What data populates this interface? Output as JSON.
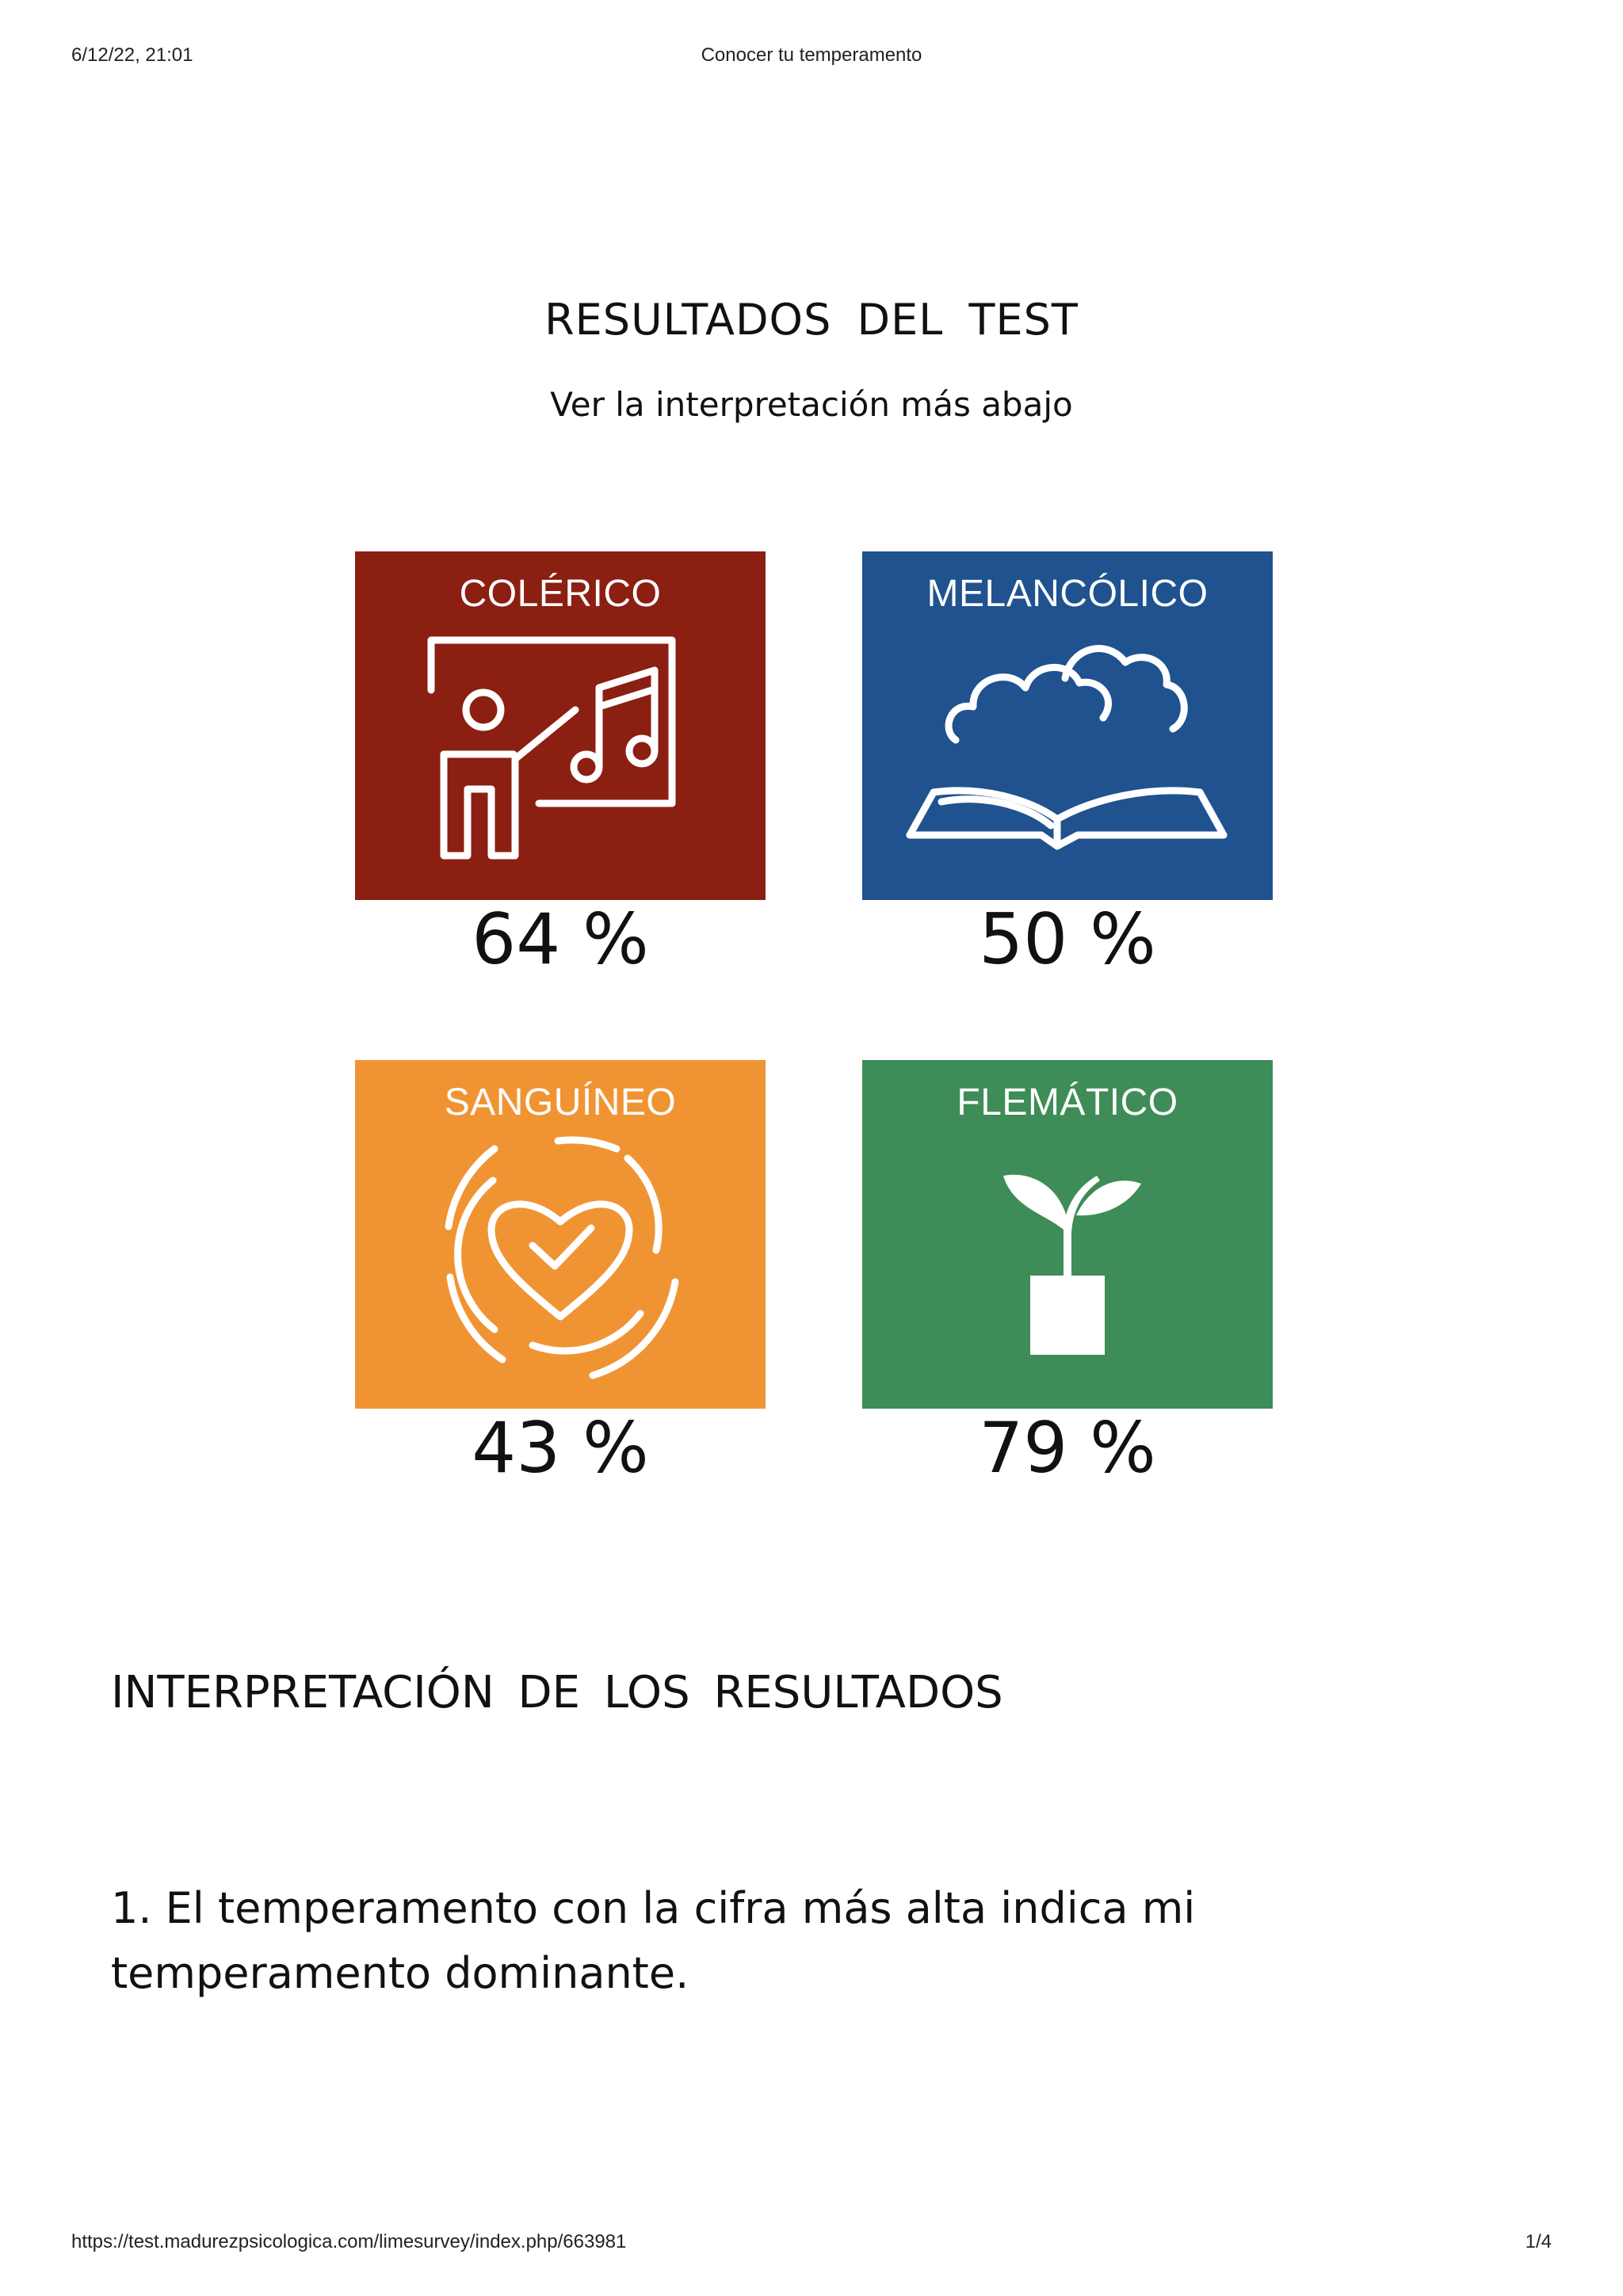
{
  "print_header": {
    "datetime": "6/12/22, 21:01",
    "title": "Conocer tu temperamento"
  },
  "page": {
    "title": "RESULTADOS  DEL  TEST",
    "subtitle": "Ver la interpretación más abajo"
  },
  "temperaments": [
    {
      "name": "COLÉRICO",
      "percent": "64 %",
      "value": 64,
      "color": "#8b1f12",
      "icon": "teacher-board-music-icon"
    },
    {
      "name": "MELANCÓLICO",
      "percent": "50 %",
      "value": 50,
      "color": "#1f528f",
      "icon": "book-clouds-icon"
    },
    {
      "name": "SANGUÍNEO",
      "percent": "43 %",
      "value": 43,
      "color": "#f09433",
      "icon": "heart-check-icon"
    },
    {
      "name": "FLEMÁTICO",
      "percent": "79 %",
      "value": 79,
      "color": "#3e8c57",
      "icon": "sprout-pot-icon"
    }
  ],
  "interpretation": {
    "title": "INTERPRETACIÓN  DE  LOS  RESULTADOS",
    "point1": "1. El temperamento con la cifra más alta indica mi temperamento dominante."
  },
  "print_footer": {
    "url": "https://test.madurezpsicologica.com/limesurvey/index.php/663981",
    "page": "1/4"
  }
}
